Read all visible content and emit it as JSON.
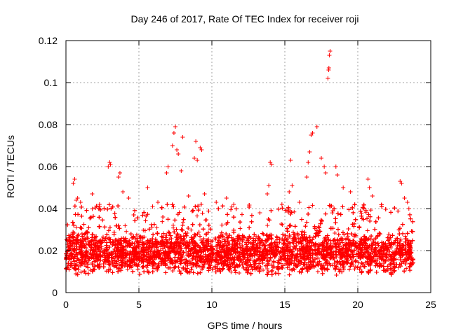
{
  "chart_data": {
    "type": "scatter",
    "title": "Day 246 of 2017, Rate Of TEC Index for receiver roji",
    "xlabel": "GPS time / hours",
    "ylabel": "ROTI / TECUs",
    "xlim": [
      0,
      25
    ],
    "ylim": [
      0,
      0.12
    ],
    "x_ticks": [
      0,
      5,
      10,
      15,
      20,
      25
    ],
    "x_tick_labels": [
      "0",
      "5",
      "10",
      "15",
      "20",
      "25"
    ],
    "y_ticks": [
      0,
      0.02,
      0.04,
      0.06,
      0.08,
      0.1,
      0.12
    ],
    "y_tick_labels": [
      "0",
      "0.02",
      "0.04",
      "0.06",
      "0.08",
      "0.1",
      "0.12"
    ],
    "grid": true,
    "marker": "+",
    "series_color": "#ff0000",
    "series": [
      {
        "name": "ROTI",
        "x_range": [
          0,
          23.8
        ],
        "dense_band": [
          0.008,
          0.03
        ],
        "points": [
          [
            0.5,
            0.052
          ],
          [
            0.6,
            0.054
          ],
          [
            0.7,
            0.044
          ],
          [
            0.8,
            0.045
          ],
          [
            1.0,
            0.043
          ],
          [
            1.8,
            0.047
          ],
          [
            2.3,
            0.042
          ],
          [
            2.9,
            0.06
          ],
          [
            3.0,
            0.062
          ],
          [
            3.05,
            0.061
          ],
          [
            3.6,
            0.055
          ],
          [
            3.7,
            0.057
          ],
          [
            3.9,
            0.048
          ],
          [
            4.3,
            0.045
          ],
          [
            5.6,
            0.05
          ],
          [
            6.3,
            0.043
          ],
          [
            6.9,
            0.057
          ],
          [
            7.0,
            0.06
          ],
          [
            7.3,
            0.07
          ],
          [
            7.4,
            0.076
          ],
          [
            7.5,
            0.079
          ],
          [
            7.6,
            0.068
          ],
          [
            7.7,
            0.066
          ],
          [
            7.9,
            0.058
          ],
          [
            8.0,
            0.074
          ],
          [
            8.4,
            0.046
          ],
          [
            8.8,
            0.064
          ],
          [
            8.9,
            0.072
          ],
          [
            9.0,
            0.063
          ],
          [
            9.2,
            0.069
          ],
          [
            9.3,
            0.068
          ],
          [
            9.5,
            0.047
          ],
          [
            10.3,
            0.043
          ],
          [
            11.0,
            0.045
          ],
          [
            11.5,
            0.042
          ],
          [
            13.8,
            0.047
          ],
          [
            13.9,
            0.051
          ],
          [
            14.0,
            0.062
          ],
          [
            14.1,
            0.061
          ],
          [
            14.8,
            0.042
          ],
          [
            15.3,
            0.048
          ],
          [
            15.4,
            0.063
          ],
          [
            15.5,
            0.051
          ],
          [
            16.0,
            0.043
          ],
          [
            16.5,
            0.055
          ],
          [
            16.6,
            0.062
          ],
          [
            16.7,
            0.067
          ],
          [
            16.8,
            0.075
          ],
          [
            16.9,
            0.076
          ],
          [
            17.2,
            0.079
          ],
          [
            17.5,
            0.064
          ],
          [
            17.7,
            0.06
          ],
          [
            17.8,
            0.057
          ],
          [
            17.95,
            0.102
          ],
          [
            18.0,
            0.106
          ],
          [
            18.02,
            0.107
          ],
          [
            18.05,
            0.113
          ],
          [
            18.1,
            0.115
          ],
          [
            18.5,
            0.06
          ],
          [
            18.6,
            0.056
          ],
          [
            19.0,
            0.05
          ],
          [
            19.5,
            0.048
          ],
          [
            20.7,
            0.054
          ],
          [
            20.8,
            0.05
          ],
          [
            21.0,
            0.046
          ],
          [
            22.9,
            0.053
          ],
          [
            23.0,
            0.052
          ],
          [
            23.2,
            0.045
          ],
          [
            23.4,
            0.043
          ],
          [
            23.5,
            0.04
          ]
        ]
      }
    ]
  }
}
